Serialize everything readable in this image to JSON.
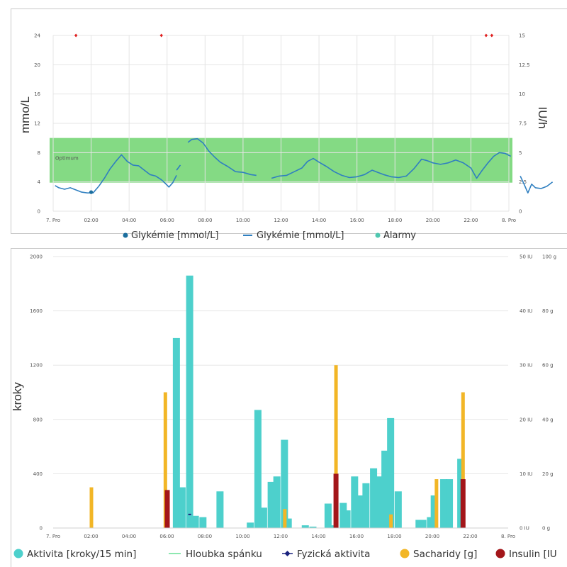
{
  "chart_data": [
    {
      "type": "line",
      "ylabel": "mmo/L",
      "y2label": "IU/h",
      "x_ticks": [
        "7. Pro",
        "02:00",
        "04:00",
        "06:00",
        "08:00",
        "10:00",
        "12:00",
        "14:00",
        "16:00",
        "18:00",
        "20:00",
        "22:00",
        "8. Pro"
      ],
      "y_ticks": [
        "0",
        "4",
        "8",
        "12",
        "16",
        "20",
        "24"
      ],
      "y2_ticks": [
        "0",
        "2.5",
        "5",
        "7.5",
        "10",
        "12.5",
        "15"
      ],
      "ylim": [
        0,
        24
      ],
      "y2lim": [
        0,
        15
      ],
      "xlim_hours": [
        0,
        24
      ],
      "target_range": [
        3.9,
        10.0
      ],
      "target_label": "Optimum",
      "colors": {
        "range": "#55cc55",
        "line": "#2f7fc0",
        "dot": "#1b6e9e",
        "alarm": "#e02020"
      },
      "alarm_markers_hours": [
        1.2,
        5.7,
        22.8,
        23.1
      ],
      "legend": [
        "Glykémie [mmol/L]",
        "Glykémie [mmol/L]",
        "Alarmy"
      ],
      "series": [
        {
          "name": "Glykémie [mmol/L]",
          "segments": [
            [
              [
                0.1,
                3.5
              ],
              [
                0.3,
                3.2
              ],
              [
                0.6,
                3.0
              ],
              [
                0.9,
                3.2
              ],
              [
                1.2,
                2.9
              ],
              [
                1.5,
                2.6
              ],
              [
                1.8,
                2.5
              ],
              [
                2.1,
                2.5
              ],
              [
                2.4,
                3.4
              ],
              [
                2.7,
                4.5
              ],
              [
                3.0,
                5.8
              ],
              [
                3.3,
                6.8
              ],
              [
                3.6,
                7.7
              ],
              [
                3.9,
                6.8
              ],
              [
                4.2,
                6.3
              ],
              [
                4.5,
                6.2
              ],
              [
                4.8,
                5.6
              ],
              [
                5.1,
                5.0
              ],
              [
                5.4,
                4.8
              ],
              [
                5.7,
                4.3
              ],
              [
                5.9,
                3.8
              ],
              [
                6.1,
                3.3
              ],
              [
                6.3,
                3.9
              ],
              [
                6.5,
                4.9
              ]
            ],
            [
              [
                6.5,
                5.6
              ],
              [
                6.7,
                6.3
              ]
            ],
            [
              [
                7.1,
                9.4
              ],
              [
                7.3,
                9.8
              ],
              [
                7.6,
                9.9
              ],
              [
                7.9,
                9.3
              ],
              [
                8.2,
                8.2
              ],
              [
                8.5,
                7.4
              ],
              [
                8.8,
                6.7
              ],
              [
                9.2,
                6.1
              ],
              [
                9.6,
                5.4
              ],
              [
                10.0,
                5.3
              ],
              [
                10.4,
                5.0
              ],
              [
                10.7,
                4.9
              ]
            ],
            [
              [
                11.5,
                4.5
              ],
              [
                11.9,
                4.8
              ],
              [
                12.3,
                4.9
              ],
              [
                12.7,
                5.4
              ],
              [
                13.1,
                5.9
              ],
              [
                13.4,
                6.8
              ],
              [
                13.7,
                7.2
              ],
              [
                14.0,
                6.7
              ],
              [
                14.4,
                6.1
              ],
              [
                14.8,
                5.4
              ],
              [
                15.2,
                4.9
              ],
              [
                15.6,
                4.6
              ],
              [
                16.0,
                4.7
              ],
              [
                16.4,
                5.0
              ],
              [
                16.8,
                5.6
              ],
              [
                17.1,
                5.3
              ],
              [
                17.4,
                5.0
              ],
              [
                17.8,
                4.7
              ],
              [
                18.2,
                4.6
              ],
              [
                18.6,
                4.8
              ],
              [
                19.0,
                5.8
              ],
              [
                19.4,
                7.1
              ],
              [
                19.7,
                6.9
              ],
              [
                20.0,
                6.6
              ],
              [
                20.4,
                6.4
              ],
              [
                20.8,
                6.6
              ],
              [
                21.2,
                7.0
              ],
              [
                21.6,
                6.6
              ],
              [
                22.0,
                5.9
              ],
              [
                22.3,
                4.5
              ],
              [
                22.6,
                5.6
              ],
              [
                22.9,
                6.6
              ],
              [
                23.2,
                7.5
              ],
              [
                23.5,
                8.0
              ],
              [
                23.8,
                7.9
              ],
              [
                24.1,
                7.5
              ]
            ],
            [
              [
                24.6,
                4.8
              ],
              [
                24.8,
                3.7
              ],
              [
                25.0,
                2.5
              ],
              [
                25.2,
                3.7
              ],
              [
                25.4,
                3.2
              ],
              [
                25.7,
                3.1
              ],
              [
                26.0,
                3.4
              ],
              [
                26.3,
                4.0
              ]
            ]
          ]
        }
      ]
    },
    {
      "type": "bar",
      "ylabel": "kroky",
      "x_ticks": [
        "7. Pro",
        "02:00",
        "04:00",
        "06:00",
        "08:00",
        "10:00",
        "12:00",
        "14:00",
        "16:00",
        "18:00",
        "20:00",
        "22:00",
        "8. Pro"
      ],
      "y_ticks": [
        "0",
        "400",
        "800",
        "1200",
        "1600",
        "2000"
      ],
      "y2_ticks": [
        "0 IU",
        "10 IU",
        "20 IU",
        "30 IU",
        "40 IU",
        "50 IU"
      ],
      "y3_ticks": [
        "0 g",
        "20 g",
        "40 g",
        "60 g",
        "80 g",
        "100 g"
      ],
      "ylim": [
        0,
        2000
      ],
      "xlim_hours": [
        0,
        24
      ],
      "colors": {
        "activity": "#4dd0cc",
        "carbs": "#f2b626",
        "insulin": "#a3161a",
        "sleep": "#8de8b0",
        "physical": "#1a237e"
      },
      "legend": [
        "Aktivita [kroky/15 min]",
        "Hloubka spánku",
        "Fyzická aktivita",
        "Sacharidy [g]",
        "Insulin [IU"
      ],
      "series": [
        {
          "name": "Aktivita [kroky/15 min]",
          "hours": [
            6.5,
            6.8,
            7.2,
            7.5,
            7.9,
            8.8,
            10.4,
            10.8,
            11.1,
            11.5,
            11.8,
            12.2,
            12.4,
            13.3,
            13.7,
            14.5,
            14.8,
            15.3,
            15.5,
            15.9,
            16.2,
            16.5,
            16.9,
            17.2,
            17.5,
            17.8,
            18.2,
            19.3,
            19.5,
            19.9,
            20.1,
            20.6,
            20.9,
            21.5
          ],
          "values": [
            1400,
            300,
            1860,
            90,
            80,
            270,
            40,
            870,
            150,
            340,
            380,
            650,
            70,
            20,
            10,
            180,
            20,
            185,
            130,
            380,
            240,
            330,
            440,
            380,
            570,
            810,
            270,
            60,
            60,
            80,
            240,
            360,
            360,
            510
          ]
        },
        {
          "name": "Sacharidy [g]",
          "hours": [
            2.0,
            5.9,
            12.2,
            14.9,
            17.8,
            20.2,
            21.6
          ],
          "values": [
            15,
            50,
            7,
            60,
            5,
            18,
            50
          ]
        },
        {
          "name": "Insulin [IU",
          "hours": [
            6.0,
            14.9,
            21.6
          ],
          "values": [
            7,
            10,
            9
          ]
        },
        {
          "name": "Fyzická aktivita",
          "hours": [
            7.2
          ],
          "values": [
            100
          ]
        }
      ]
    }
  ]
}
